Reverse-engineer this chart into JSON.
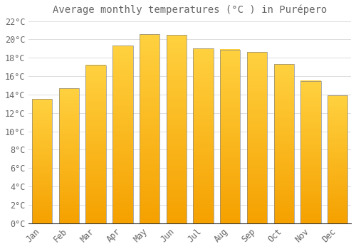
{
  "title": "Average monthly temperatures (°C ) in Purépero",
  "months": [
    "Jan",
    "Feb",
    "Mar",
    "Apr",
    "May",
    "Jun",
    "Jul",
    "Aug",
    "Sep",
    "Oct",
    "Nov",
    "Dec"
  ],
  "values": [
    13.5,
    14.7,
    17.2,
    19.3,
    20.6,
    20.5,
    19.0,
    18.9,
    18.6,
    17.3,
    15.5,
    13.9
  ],
  "bar_color_top": "#FFD040",
  "bar_color_bottom": "#F5A000",
  "bar_edge_color": "#888888",
  "background_color": "#FFFFFF",
  "grid_color": "#DDDDDD",
  "text_color": "#666666",
  "ylim": [
    0,
    22
  ],
  "yticks": [
    0,
    2,
    4,
    6,
    8,
    10,
    12,
    14,
    16,
    18,
    20,
    22
  ],
  "title_fontsize": 10,
  "tick_fontsize": 8.5,
  "bar_width": 0.75
}
